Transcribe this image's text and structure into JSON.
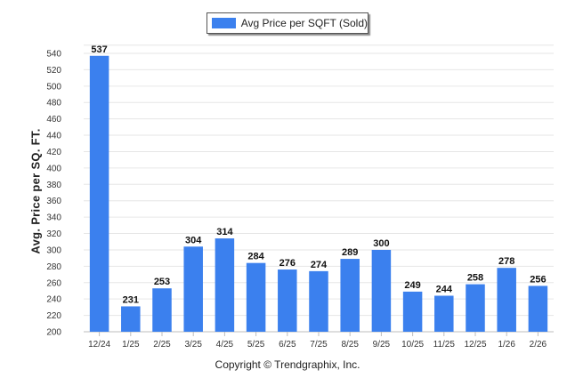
{
  "colors": {
    "bar": "#3b80ee",
    "grid": "#e6e6e6",
    "axis": "#bdbdbd"
  },
  "footer": {
    "copyright": "Copyright © Trendgraphix, Inc."
  },
  "chart_data": {
    "type": "bar",
    "title": "",
    "xlabel": "",
    "ylabel": "Avg. Price per SQ. FT.",
    "legend": {
      "position": "top-center",
      "entries": [
        "Avg Price per SQFT (Sold)"
      ]
    },
    "grid": true,
    "ylim": [
      200,
      550
    ],
    "yticks": [
      200,
      220,
      240,
      260,
      280,
      300,
      320,
      340,
      360,
      380,
      400,
      420,
      440,
      460,
      480,
      500,
      520,
      540
    ],
    "categories": [
      "12/24",
      "1/25",
      "2/25",
      "3/25",
      "4/25",
      "5/25",
      "6/25",
      "7/25",
      "8/25",
      "9/25",
      "10/25",
      "11/25",
      "12/25",
      "1/26",
      "2/26"
    ],
    "series": [
      {
        "name": "Avg Price per SQFT (Sold)",
        "values": [
          537,
          231,
          253,
          304,
          314,
          284,
          276,
          274,
          289,
          300,
          249,
          244,
          258,
          278,
          256
        ]
      }
    ]
  }
}
